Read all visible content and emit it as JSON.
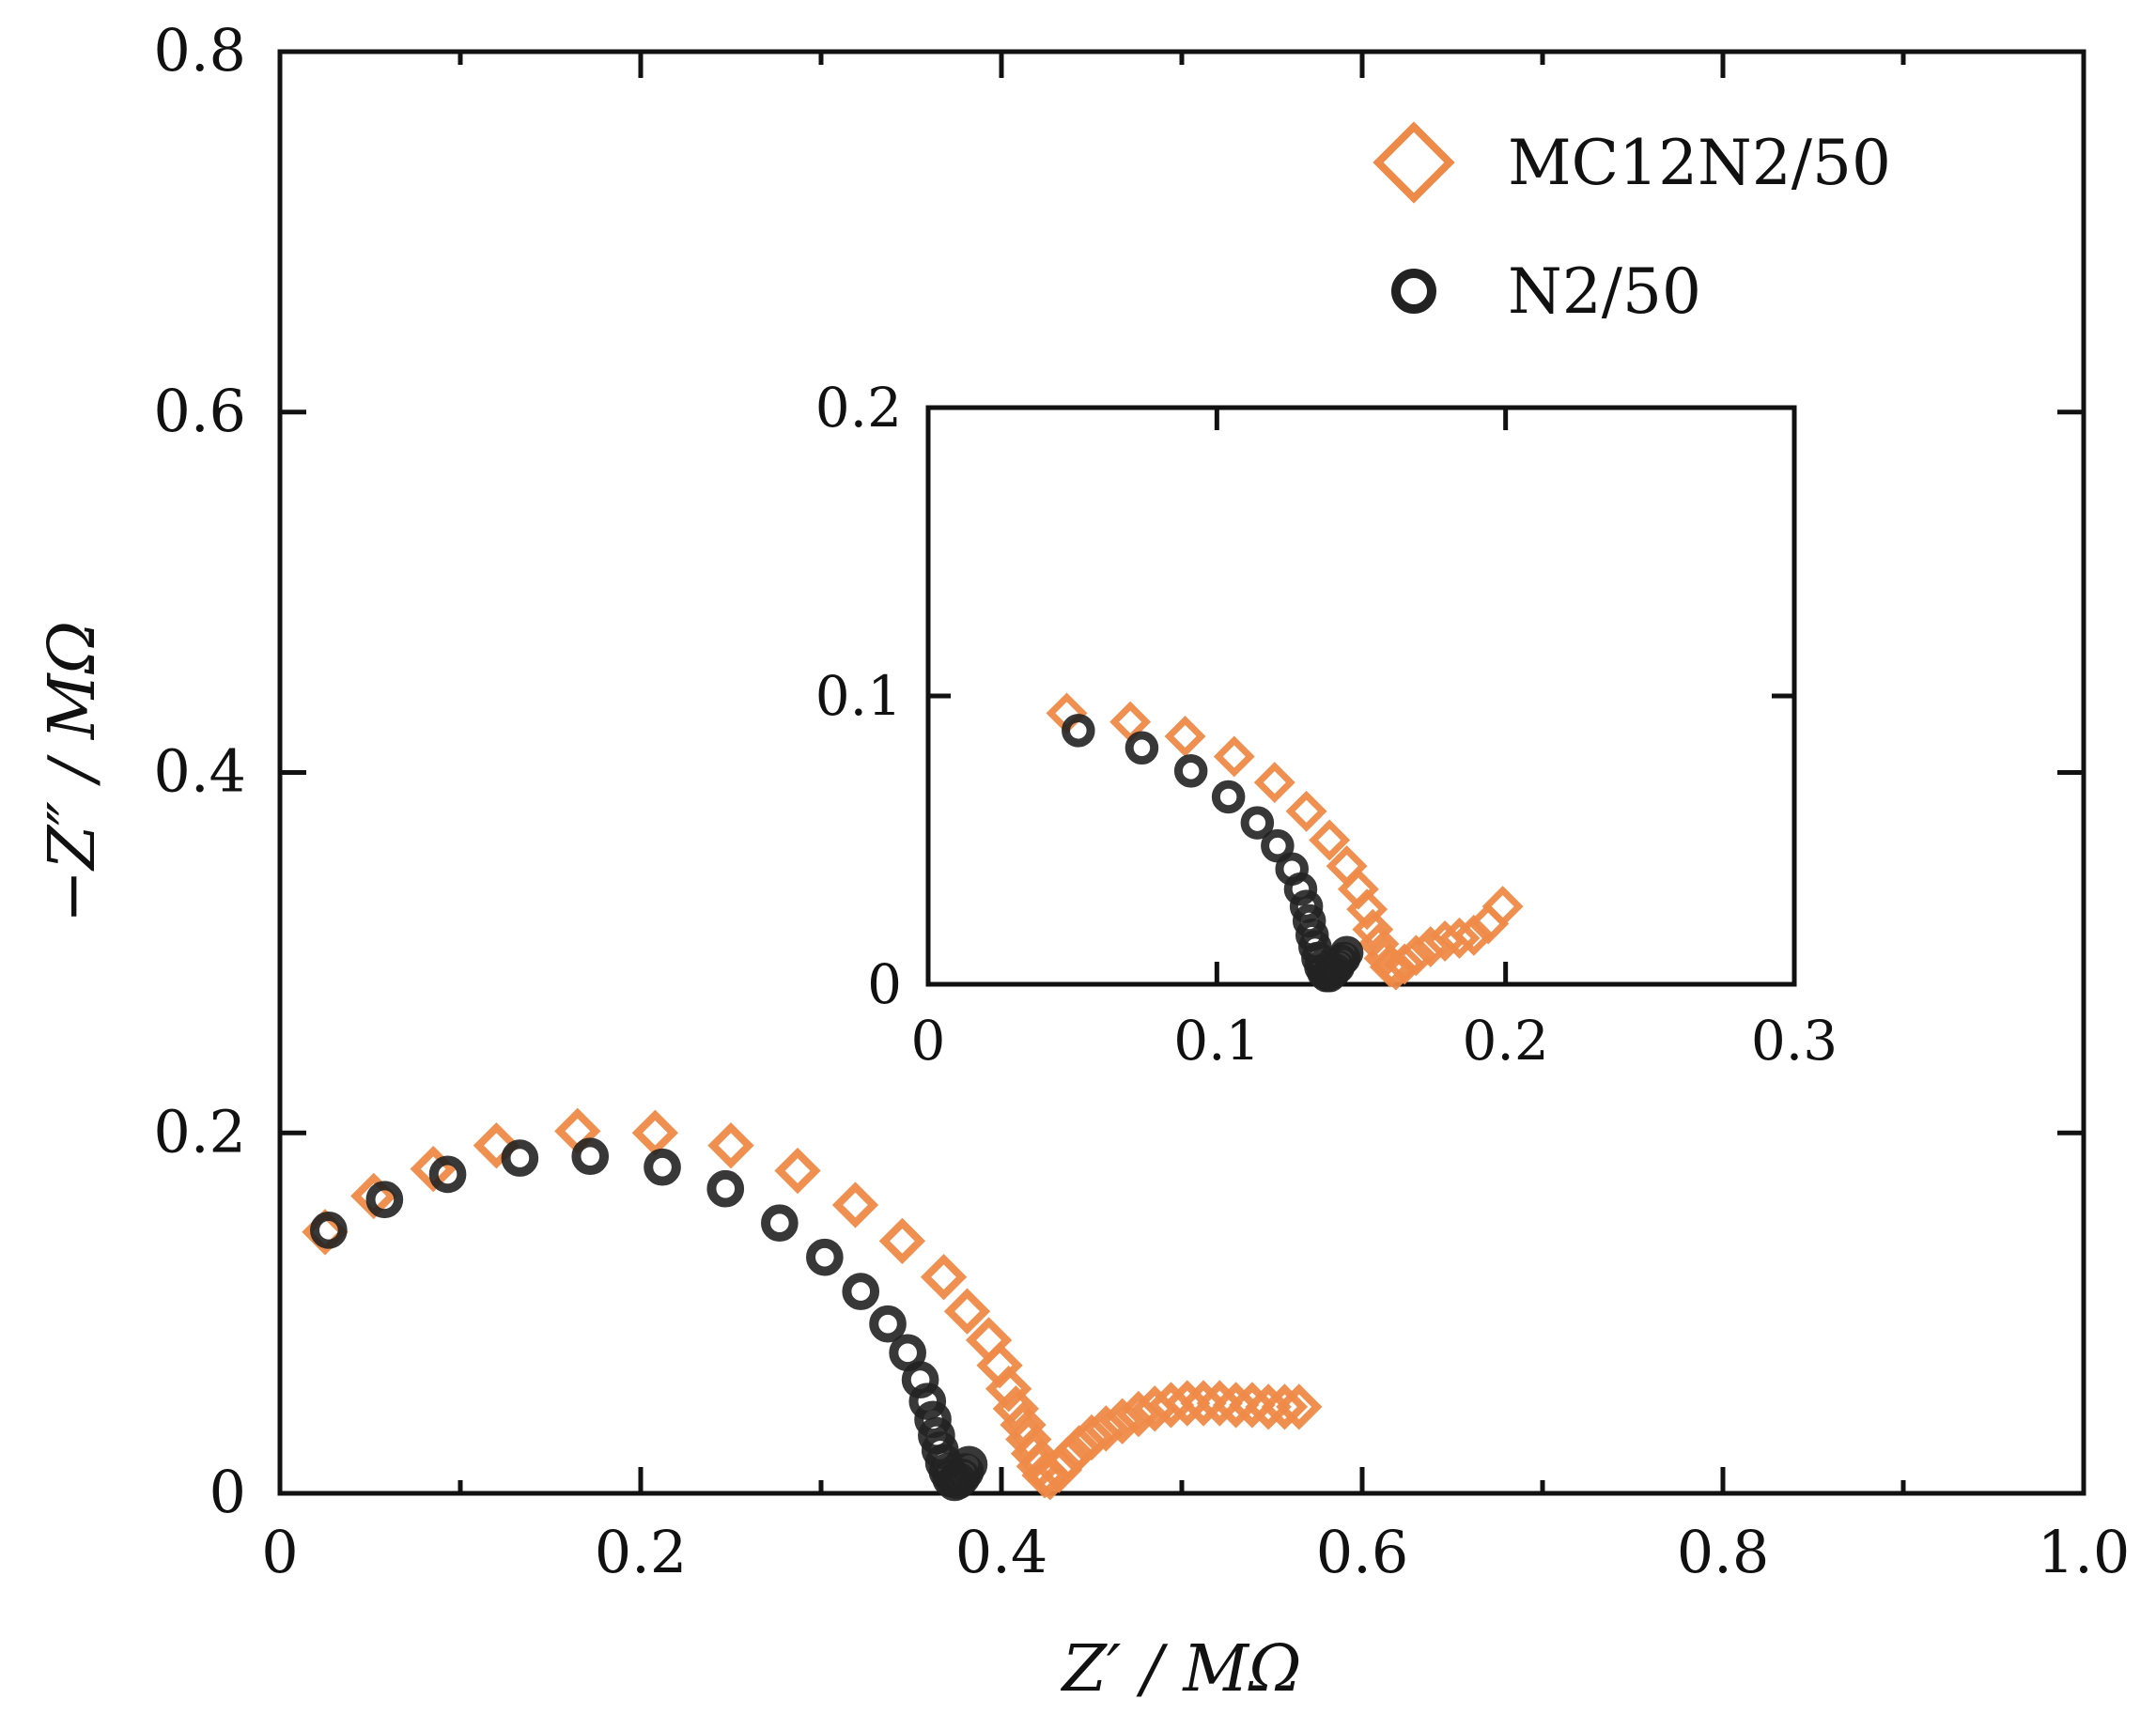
{
  "colors": {
    "series_1": "#ee8a48",
    "series_2": "#222222",
    "axis": "#111111"
  },
  "chart_data": [
    {
      "id": "main",
      "type": "scatter",
      "xlabel": "Z′ / MΩ",
      "ylabel": "−Z″ / MΩ",
      "xlim": [
        0,
        1.0
      ],
      "ylim": [
        0,
        0.8
      ],
      "xticks": [
        "0",
        "0.2",
        "0.4",
        "0.6",
        "0.8",
        "1.0"
      ],
      "yticks": [
        "0",
        "0.2",
        "0.4",
        "0.6",
        "0.8"
      ],
      "grid": false,
      "legend_position": "top-right",
      "series": [
        {
          "name": "MC12N2/50",
          "marker": "diamond",
          "color": "#ee8a48",
          "x": [
            0.025,
            0.052,
            0.085,
            0.12,
            0.165,
            0.208,
            0.25,
            0.287,
            0.319,
            0.345,
            0.368,
            0.381,
            0.393,
            0.399,
            0.404,
            0.408,
            0.412,
            0.415,
            0.418,
            0.421,
            0.424,
            0.427,
            0.432,
            0.437,
            0.443,
            0.45,
            0.458,
            0.467,
            0.476,
            0.485,
            0.494,
            0.503,
            0.512,
            0.521,
            0.53,
            0.539,
            0.548,
            0.557,
            0.565
          ],
          "y": [
            0.145,
            0.165,
            0.18,
            0.193,
            0.201,
            0.2,
            0.193,
            0.179,
            0.16,
            0.14,
            0.12,
            0.101,
            0.085,
            0.071,
            0.058,
            0.047,
            0.038,
            0.03,
            0.022,
            0.015,
            0.01,
            0.009,
            0.013,
            0.019,
            0.025,
            0.031,
            0.036,
            0.04,
            0.044,
            0.047,
            0.049,
            0.05,
            0.05,
            0.05,
            0.049,
            0.049,
            0.048,
            0.048,
            0.048
          ]
        },
        {
          "name": "N2/50",
          "marker": "circle",
          "color": "#222222",
          "x": [
            0.027,
            0.058,
            0.093,
            0.133,
            0.172,
            0.212,
            0.247,
            0.277,
            0.302,
            0.322,
            0.337,
            0.348,
            0.355,
            0.359,
            0.362,
            0.364,
            0.366,
            0.368,
            0.37,
            0.372,
            0.374,
            0.376,
            0.378,
            0.38,
            0.382
          ],
          "y": [
            0.146,
            0.163,
            0.177,
            0.186,
            0.187,
            0.181,
            0.169,
            0.15,
            0.131,
            0.112,
            0.094,
            0.078,
            0.063,
            0.051,
            0.041,
            0.032,
            0.024,
            0.017,
            0.012,
            0.008,
            0.006,
            0.007,
            0.009,
            0.012,
            0.016
          ]
        }
      ]
    },
    {
      "id": "inset",
      "type": "scatter",
      "xlabel": "",
      "ylabel": "",
      "xlim": [
        0,
        0.3
      ],
      "ylim": [
        0,
        0.2
      ],
      "xticks": [
        "0",
        "0.1",
        "0.2",
        "0.3"
      ],
      "yticks": [
        "0",
        "0.1",
        "0.2"
      ],
      "grid": false,
      "series": [
        {
          "name": "MC12N2/50",
          "marker": "diamond",
          "color": "#ee8a48",
          "x": [
            0.048,
            0.07,
            0.089,
            0.106,
            0.12,
            0.131,
            0.139,
            0.145,
            0.149,
            0.152,
            0.154,
            0.156,
            0.158,
            0.16,
            0.162,
            0.165,
            0.169,
            0.174,
            0.179,
            0.184,
            0.189,
            0.194,
            0.199
          ],
          "y": [
            0.094,
            0.091,
            0.086,
            0.079,
            0.07,
            0.06,
            0.05,
            0.041,
            0.033,
            0.026,
            0.019,
            0.014,
            0.009,
            0.006,
            0.005,
            0.007,
            0.01,
            0.013,
            0.015,
            0.016,
            0.017,
            0.021,
            0.027
          ]
        },
        {
          "name": "N2/50",
          "marker": "circle",
          "color": "#222222",
          "x": [
            0.052,
            0.074,
            0.091,
            0.104,
            0.114,
            0.121,
            0.126,
            0.129,
            0.131,
            0.132,
            0.133,
            0.134,
            0.135,
            0.136,
            0.137,
            0.138,
            0.139,
            0.14,
            0.141,
            0.142,
            0.143,
            0.144,
            0.145
          ],
          "y": [
            0.088,
            0.082,
            0.074,
            0.065,
            0.056,
            0.048,
            0.04,
            0.033,
            0.027,
            0.022,
            0.017,
            0.013,
            0.009,
            0.006,
            0.004,
            0.003,
            0.003,
            0.004,
            0.005,
            0.006,
            0.008,
            0.009,
            0.011
          ]
        }
      ]
    }
  ]
}
